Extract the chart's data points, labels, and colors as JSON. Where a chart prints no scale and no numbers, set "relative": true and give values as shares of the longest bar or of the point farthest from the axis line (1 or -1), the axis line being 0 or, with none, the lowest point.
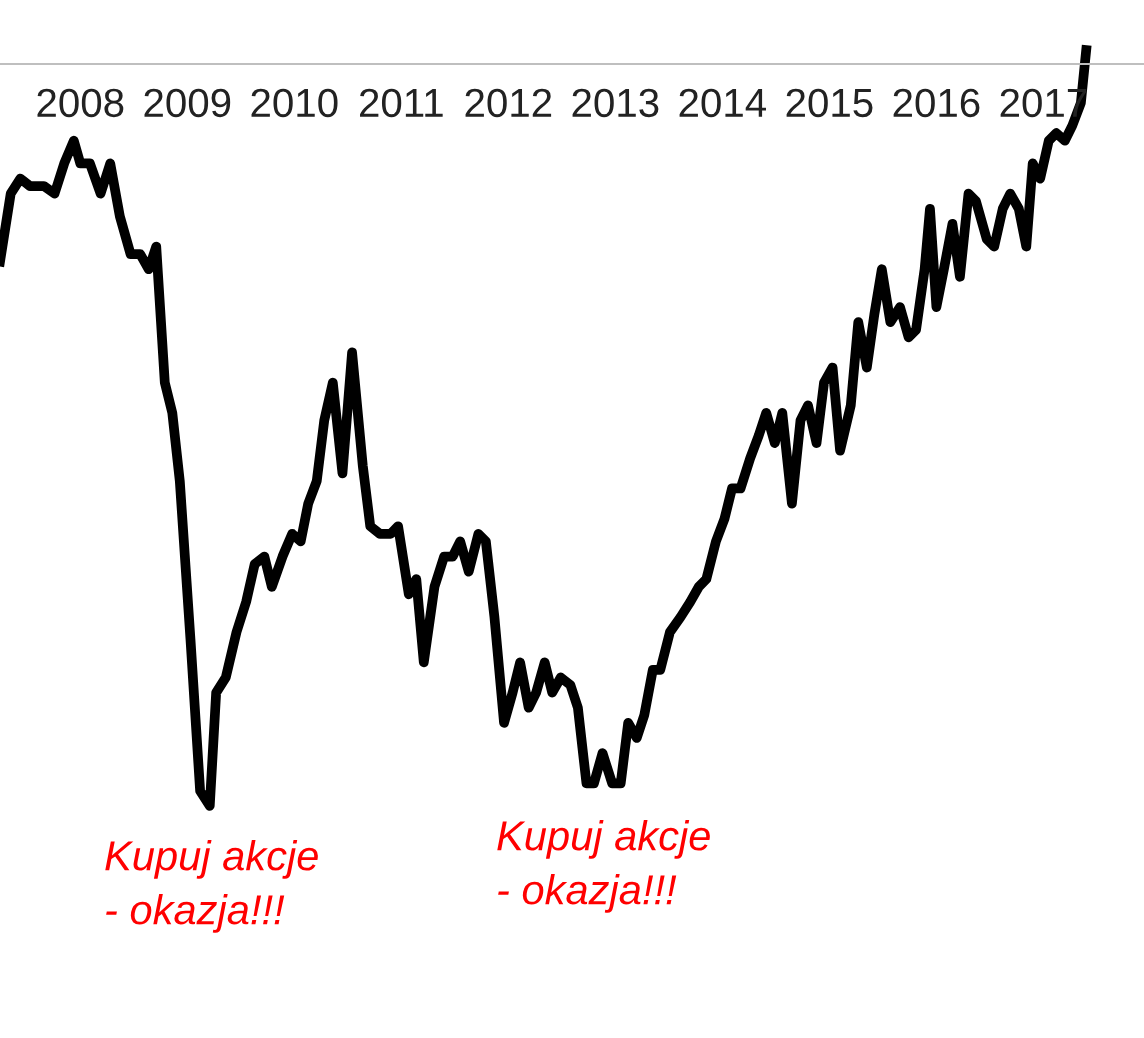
{
  "chart_data": {
    "type": "line",
    "relative": true,
    "xlim": [
      2007.25,
      2017.94
    ],
    "xticks": [
      2008,
      2009,
      2010,
      2011,
      2012,
      2013,
      2014,
      2015,
      2016,
      2017
    ],
    "grid": false,
    "marker": "none",
    "line_style": "solid",
    "annotations": [
      "Kupuj akcje\n- okazja!!!",
      "Kupuj akcje\n- okazja!!!"
    ],
    "series": [
      {
        "color": "#000000",
        "x": [
          2007.25,
          2007.35,
          2007.44,
          2007.53,
          2007.66,
          2007.76,
          2007.85,
          2007.94,
          2008.0,
          2008.09,
          2008.19,
          2008.28,
          2008.37,
          2008.47,
          2008.56,
          2008.64,
          2008.71,
          2008.79,
          2008.86,
          2008.93,
          2009.03,
          2009.12,
          2009.21,
          2009.27,
          2009.36,
          2009.46,
          2009.55,
          2009.63,
          2009.72,
          2009.79,
          2009.89,
          2009.98,
          2010.06,
          2010.13,
          2010.21,
          2010.28,
          2010.36,
          2010.45,
          2010.54,
          2010.64,
          2010.71,
          2010.8,
          2010.9,
          2010.97,
          2011.07,
          2011.14,
          2011.21,
          2011.31,
          2011.4,
          2011.48,
          2011.55,
          2011.63,
          2011.72,
          2011.79,
          2011.87,
          2011.96,
          2012.04,
          2012.11,
          2012.19,
          2012.26,
          2012.34,
          2012.41,
          2012.49,
          2012.58,
          2012.65,
          2012.73,
          2012.8,
          2012.88,
          2012.97,
          2013.05,
          2013.12,
          2013.2,
          2013.27,
          2013.35,
          2013.42,
          2013.51,
          2013.61,
          2013.7,
          2013.78,
          2013.85,
          2013.94,
          2014.02,
          2014.09,
          2014.17,
          2014.26,
          2014.34,
          2014.41,
          2014.49,
          2014.56,
          2014.65,
          2014.73,
          2014.8,
          2014.88,
          2014.95,
          2015.03,
          2015.1,
          2015.2,
          2015.27,
          2015.35,
          2015.42,
          2015.49,
          2015.57,
          2015.66,
          2015.74,
          2015.81,
          2015.89,
          2015.94,
          2016.0,
          2016.07,
          2016.15,
          2016.22,
          2016.3,
          2016.37,
          2016.47,
          2016.54,
          2016.62,
          2016.69,
          2016.77,
          2016.84,
          2016.9,
          2016.97,
          2017.05,
          2017.12,
          2017.2,
          2017.27,
          2017.35,
          2017.4
        ],
        "values": [
          0.72,
          0.81,
          0.83,
          0.82,
          0.82,
          0.81,
          0.85,
          0.88,
          0.85,
          0.85,
          0.81,
          0.85,
          0.78,
          0.73,
          0.73,
          0.71,
          0.74,
          0.56,
          0.52,
          0.43,
          0.22,
          0.02,
          0,
          0.15,
          0.17,
          0.23,
          0.27,
          0.32,
          0.33,
          0.29,
          0.33,
          0.36,
          0.35,
          0.4,
          0.43,
          0.51,
          0.56,
          0.44,
          0.6,
          0.45,
          0.37,
          0.36,
          0.36,
          0.37,
          0.28,
          0.3,
          0.19,
          0.29,
          0.33,
          0.33,
          0.35,
          0.31,
          0.36,
          0.35,
          0.25,
          0.11,
          0.15,
          0.19,
          0.13,
          0.15,
          0.19,
          0.15,
          0.17,
          0.16,
          0.13,
          0.03,
          0.03,
          0.07,
          0.03,
          0.03,
          0.11,
          0.09,
          0.12,
          0.18,
          0.18,
          0.23,
          0.25,
          0.27,
          0.29,
          0.3,
          0.35,
          0.38,
          0.42,
          0.42,
          0.46,
          0.49,
          0.52,
          0.48,
          0.52,
          0.4,
          0.51,
          0.53,
          0.48,
          0.56,
          0.58,
          0.47,
          0.53,
          0.64,
          0.58,
          0.65,
          0.71,
          0.64,
          0.66,
          0.62,
          0.63,
          0.71,
          0.79,
          0.66,
          0.71,
          0.77,
          0.7,
          0.81,
          0.8,
          0.75,
          0.74,
          0.79,
          0.81,
          0.79,
          0.74,
          0.85,
          0.83,
          0.88,
          0.89,
          0.88,
          0.9,
          0.93,
          1
        ]
      }
    ]
  }
}
